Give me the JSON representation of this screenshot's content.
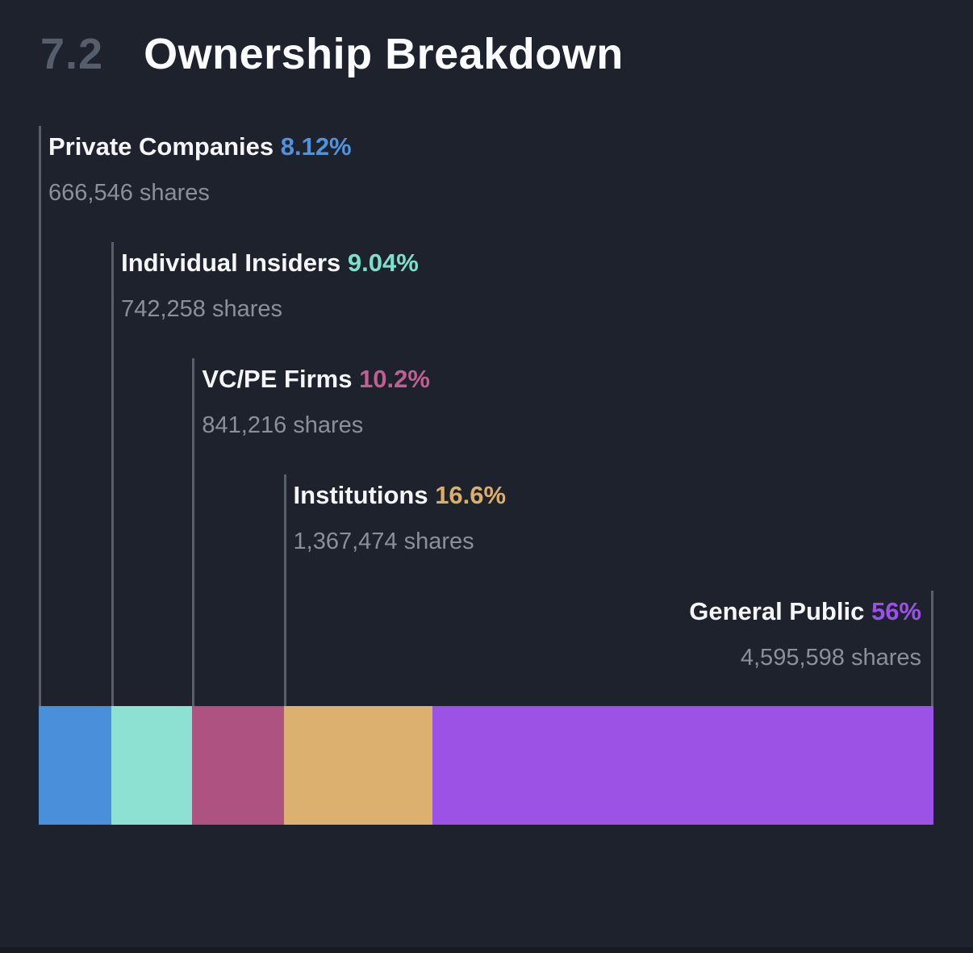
{
  "header": {
    "section_number": "7.2",
    "title": "Ownership Breakdown"
  },
  "chart_data": {
    "type": "bar",
    "variant": "horizontal-stacked-single-bar",
    "title": "Ownership Breakdown",
    "unit": "shares",
    "legend_position": "leader-line-labels-above-bar",
    "grid": false,
    "segments": [
      {
        "label": "Private Companies",
        "percent_label": "8.12%",
        "percent_value": 8.12,
        "shares_label": "666,546 shares",
        "shares_value": 666546,
        "color": "#4a8fd9",
        "percent_text_color": "#4e93dd"
      },
      {
        "label": "Individual Insiders",
        "percent_label": "9.04%",
        "percent_value": 9.04,
        "shares_label": "742,258 shares",
        "shares_value": 742258,
        "color": "#8ce1d2",
        "percent_text_color": "#7ce0cc"
      },
      {
        "label": "VC/PE Firms",
        "percent_label": "10.2%",
        "percent_value": 10.2,
        "shares_label": "841,216 shares",
        "shares_value": 841216,
        "color": "#ae5282",
        "percent_text_color": "#c05f93"
      },
      {
        "label": "Institutions",
        "percent_label": "16.6%",
        "percent_value": 16.6,
        "shares_label": "1,367,474 shares",
        "shares_value": 1367474,
        "color": "#dcb170",
        "percent_text_color": "#dcaf68"
      },
      {
        "label": "General Public",
        "percent_label": "56%",
        "percent_value": 56,
        "shares_label": "4,595,598 shares",
        "shares_value": 4595598,
        "color": "#9c52e4",
        "percent_text_color": "#9d50e9"
      }
    ],
    "colors": {
      "background": "#1e222d",
      "label_text": "#f5f6f8",
      "shares_text": "#8a909b",
      "leader_line": "#5a6069"
    }
  }
}
